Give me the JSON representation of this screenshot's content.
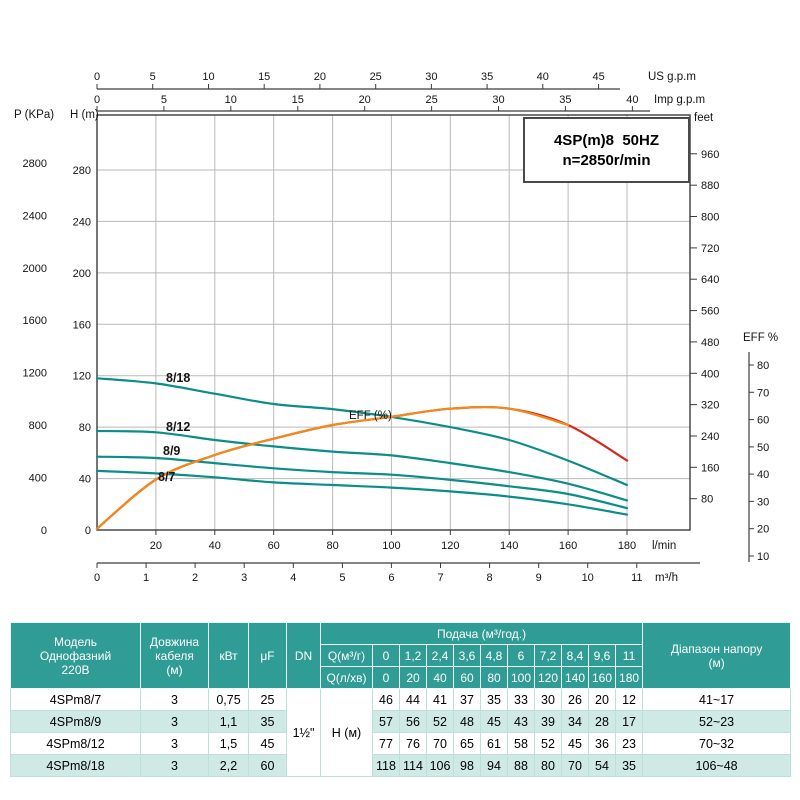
{
  "colors": {
    "table_header_bg": "#2f9d96",
    "table_row_alt": "#cfe9e5",
    "curve_teal": "#0b8d89",
    "eff_orange": "#ef8b1c",
    "eff_red": "#d9261f"
  },
  "chart_data": {
    "type": "line",
    "title": "4SP(m)8  50HZ",
    "subtitle": "n=2850r/min",
    "x_lmin": [
      0,
      20,
      40,
      60,
      80,
      100,
      120,
      140,
      160,
      180
    ],
    "series": [
      {
        "name": "8/18",
        "units": "H(m)",
        "color": "#0b8d89",
        "values": [
          118,
          114,
          106,
          98,
          94,
          88,
          80,
          70,
          54,
          35
        ]
      },
      {
        "name": "8/12",
        "units": "H(m)",
        "color": "#0b8d89",
        "values": [
          77,
          76,
          70,
          65,
          61,
          58,
          52,
          45,
          36,
          23
        ]
      },
      {
        "name": "8/9",
        "units": "H(m)",
        "color": "#0b8d89",
        "values": [
          57,
          56,
          52,
          48,
          45,
          43,
          39,
          34,
          28,
          17
        ]
      },
      {
        "name": "8/7",
        "units": "H(m)",
        "color": "#0b8d89",
        "values": [
          46,
          44,
          41,
          37,
          35,
          33,
          30,
          26,
          20,
          12
        ]
      }
    ],
    "eff_series": {
      "name": "EFF (%)",
      "color": "#ef8b1c",
      "tail_color": "#d9261f",
      "values_pct": [
        20,
        38,
        47,
        53,
        58,
        61,
        64,
        64,
        58,
        45
      ]
    },
    "axes": {
      "left_p_kpa": {
        "label": "P (KPa)",
        "ticks": [
          2800,
          2400,
          2000,
          1600,
          1200,
          800,
          400,
          0
        ]
      },
      "left_h_m": {
        "label": "H (m)",
        "ticks": [
          280,
          240,
          200,
          160,
          120,
          80,
          40,
          0
        ],
        "range": [
          0,
          280
        ]
      },
      "right_feet": {
        "label": "feet",
        "ticks": [
          960,
          880,
          800,
          720,
          640,
          560,
          480,
          400,
          320,
          240,
          160,
          80
        ]
      },
      "right_eff": {
        "label": "EFF %",
        "ticks": [
          80,
          70,
          60,
          50,
          40,
          30,
          20,
          10
        ]
      },
      "top_us_gpm": {
        "label": "US g.p.m",
        "ticks": [
          0,
          5,
          10,
          15,
          20,
          25,
          30,
          35,
          40,
          45
        ]
      },
      "top_imp_gpm": {
        "label": "Imp g.p.m",
        "ticks": [
          0,
          5,
          10,
          15,
          20,
          25,
          30,
          35,
          40
        ]
      },
      "bottom_lmin": {
        "label": "l/min",
        "ticks": [
          20,
          40,
          60,
          80,
          100,
          120,
          140,
          160,
          180
        ]
      },
      "bottom_m3h": {
        "label": "m³/h",
        "ticks": [
          0,
          1,
          2,
          3,
          4,
          5,
          6,
          7,
          8,
          9,
          10,
          11
        ]
      }
    },
    "grid": true,
    "legend_position": "on-curve"
  },
  "table": {
    "header": {
      "model": [
        "Модель",
        "Однофазний",
        "220В"
      ],
      "cable": [
        "Довжина",
        "кабеля",
        "(м)"
      ],
      "kw": "кВт",
      "uf": "μF",
      "dn": "DN",
      "flow": "Подача (м³/год.)",
      "range": [
        "Діапазон напору",
        "(м)"
      ]
    },
    "q_m3_label": "Q(м³/г)",
    "q_l_label": "Q(л/хв)",
    "q_m3_values": [
      "0",
      "1,2",
      "2,4",
      "3,6",
      "4,8",
      "6",
      "7,2",
      "8,4",
      "9,6",
      "11"
    ],
    "q_l_values": [
      "0",
      "20",
      "40",
      "60",
      "80",
      "100",
      "120",
      "140",
      "160",
      "180"
    ],
    "dn_value": "1½\"",
    "h_row_label": "H (м)",
    "rows": [
      {
        "model": "4SPm8/7",
        "cable": "3",
        "kw": "0,75",
        "uf": "25",
        "h": [
          "46",
          "44",
          "41",
          "37",
          "35",
          "33",
          "30",
          "26",
          "20",
          "12"
        ],
        "range": "41~17"
      },
      {
        "model": "4SPm8/9",
        "cable": "3",
        "kw": "1,1",
        "uf": "35",
        "h": [
          "57",
          "56",
          "52",
          "48",
          "45",
          "43",
          "39",
          "34",
          "28",
          "17"
        ],
        "range": "52~23"
      },
      {
        "model": "4SPm8/12",
        "cable": "3",
        "kw": "1,5",
        "uf": "45",
        "h": [
          "77",
          "76",
          "70",
          "65",
          "61",
          "58",
          "52",
          "45",
          "36",
          "23"
        ],
        "range": "70~32"
      },
      {
        "model": "4SPm8/18",
        "cable": "3",
        "kw": "2,2",
        "uf": "60",
        "h": [
          "118",
          "114",
          "106",
          "98",
          "94",
          "88",
          "80",
          "70",
          "54",
          "35"
        ],
        "range": "106~48"
      }
    ]
  }
}
